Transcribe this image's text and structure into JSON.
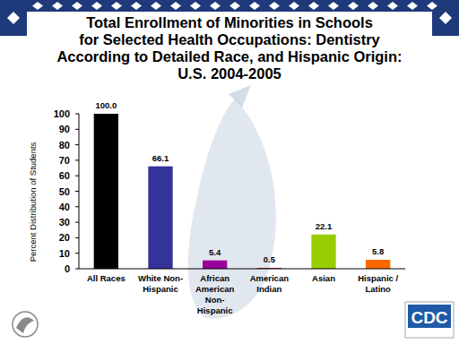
{
  "chart_data": {
    "type": "bar",
    "title": "Total Enrollment of Minorities in Schools\nfor Selected Health Occupations: Dentistry\nAccording to Detailed Race, and Hispanic Origin:\nU.S. 2004-2005",
    "y_label": "Percent Distribution of Students",
    "categories": [
      "All Races",
      "White Non-\nHispanic",
      "African\nAmerican\nNon-\nHispanic",
      "American\nIndian",
      "Asian",
      "Hispanic /\nLatino"
    ],
    "values": [
      100,
      66.1,
      5.4,
      0.5,
      22.1,
      5.8
    ],
    "value_labels": [
      "100.0",
      "66.1",
      "5.4",
      "0.5",
      "22.1",
      "5.8"
    ],
    "colors": [
      "#000000",
      "#333399",
      "#990099",
      "#990000",
      "#99cc00",
      "#ff6600"
    ],
    "ylim": [
      0,
      100
    ],
    "yticks": [
      0,
      10,
      20,
      30,
      40,
      50,
      60,
      70,
      80,
      90,
      100
    ],
    "grid": false,
    "data_labels": true
  },
  "logo_text": "CDC"
}
